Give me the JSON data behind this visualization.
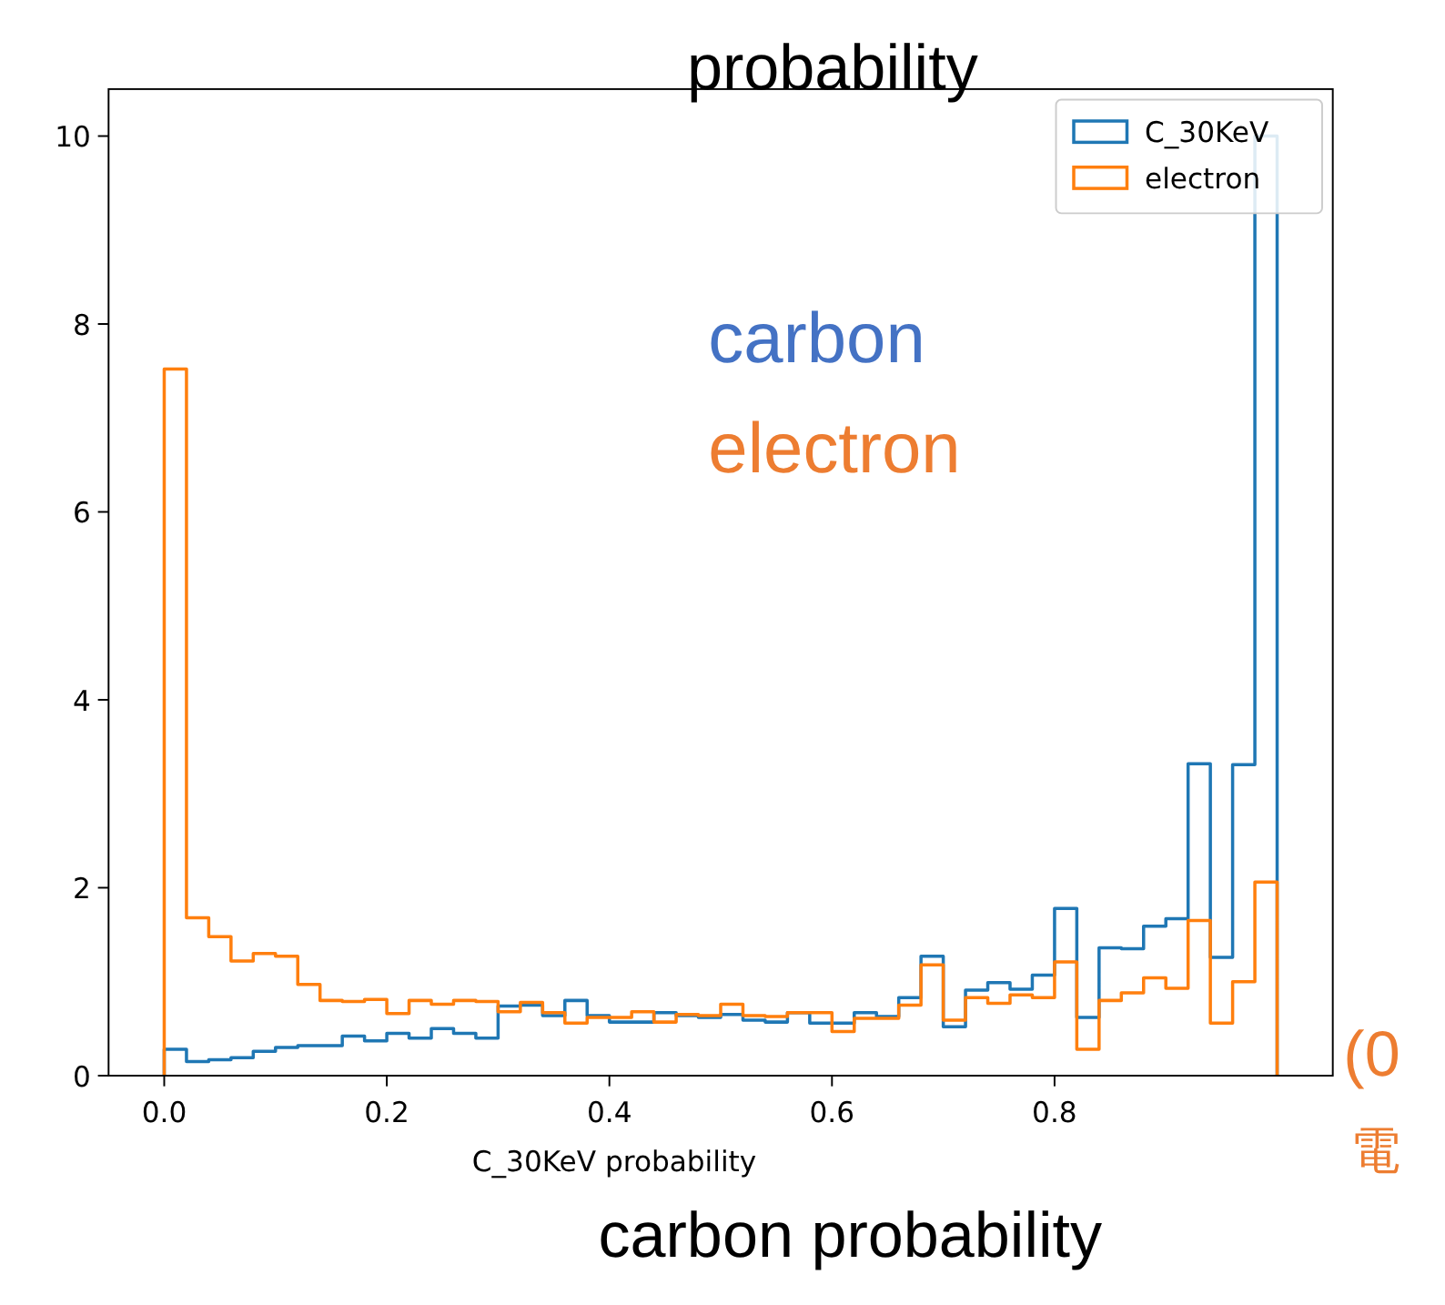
{
  "chart_data": {
    "type": "histogram",
    "xlabel": "C_30KeV probability",
    "bins": [
      0,
      0.02,
      0.04,
      0.06,
      0.08,
      0.1,
      0.12,
      0.14,
      0.16,
      0.18,
      0.2,
      0.22,
      0.24,
      0.26,
      0.28,
      0.3,
      0.32,
      0.34,
      0.36,
      0.38,
      0.4,
      0.42,
      0.44,
      0.46,
      0.48,
      0.5,
      0.52,
      0.54,
      0.56,
      0.58,
      0.6,
      0.62,
      0.64,
      0.66,
      0.68,
      0.7,
      0.72,
      0.74,
      0.76,
      0.78,
      0.8,
      0.82,
      0.84,
      0.86,
      0.88,
      0.9,
      0.92,
      0.94,
      0.96,
      0.98,
      1.0
    ],
    "series": [
      {
        "name": "C_30KeV",
        "color": "#1f77b4",
        "values": [
          0.28,
          0.15,
          0.17,
          0.19,
          0.26,
          0.3,
          0.32,
          0.32,
          0.42,
          0.37,
          0.45,
          0.4,
          0.5,
          0.45,
          0.4,
          0.74,
          0.75,
          0.64,
          0.8,
          0.64,
          0.57,
          0.57,
          0.67,
          0.64,
          0.62,
          0.65,
          0.59,
          0.57,
          0.67,
          0.56,
          0.56,
          0.67,
          0.63,
          0.83,
          1.27,
          0.52,
          0.91,
          0.99,
          0.92,
          1.07,
          1.78,
          0.62,
          1.36,
          1.35,
          1.59,
          1.67,
          3.32,
          1.26,
          3.31,
          10.0
        ]
      },
      {
        "name": "electron",
        "color": "#ff7f0e",
        "values": [
          7.52,
          1.68,
          1.48,
          1.22,
          1.3,
          1.27,
          0.97,
          0.8,
          0.79,
          0.81,
          0.66,
          0.8,
          0.76,
          0.8,
          0.79,
          0.68,
          0.78,
          0.67,
          0.56,
          0.62,
          0.62,
          0.68,
          0.57,
          0.65,
          0.64,
          0.76,
          0.64,
          0.63,
          0.67,
          0.67,
          0.47,
          0.61,
          0.61,
          0.75,
          1.18,
          0.59,
          0.83,
          0.77,
          0.86,
          0.83,
          1.21,
          0.28,
          0.8,
          0.88,
          1.04,
          0.93,
          1.65,
          0.56,
          1.0,
          2.06
        ]
      }
    ],
    "xlim": [
      -0.05,
      1.05
    ],
    "ylim": [
      0,
      10.5
    ],
    "xticks": [
      {
        "value": 0,
        "label": "0.0"
      },
      {
        "value": 0.2,
        "label": "0.2"
      },
      {
        "value": 0.4,
        "label": "0.4"
      },
      {
        "value": 0.6,
        "label": "0.6"
      },
      {
        "value": 0.8,
        "label": "0.8"
      }
    ],
    "yticks": [
      0,
      2,
      4,
      6,
      8,
      10
    ],
    "legend": "top right",
    "grid": false,
    "annotations": [
      "probability",
      "carbon",
      "electron",
      "carbon probability",
      "(0",
      "電"
    ]
  }
}
